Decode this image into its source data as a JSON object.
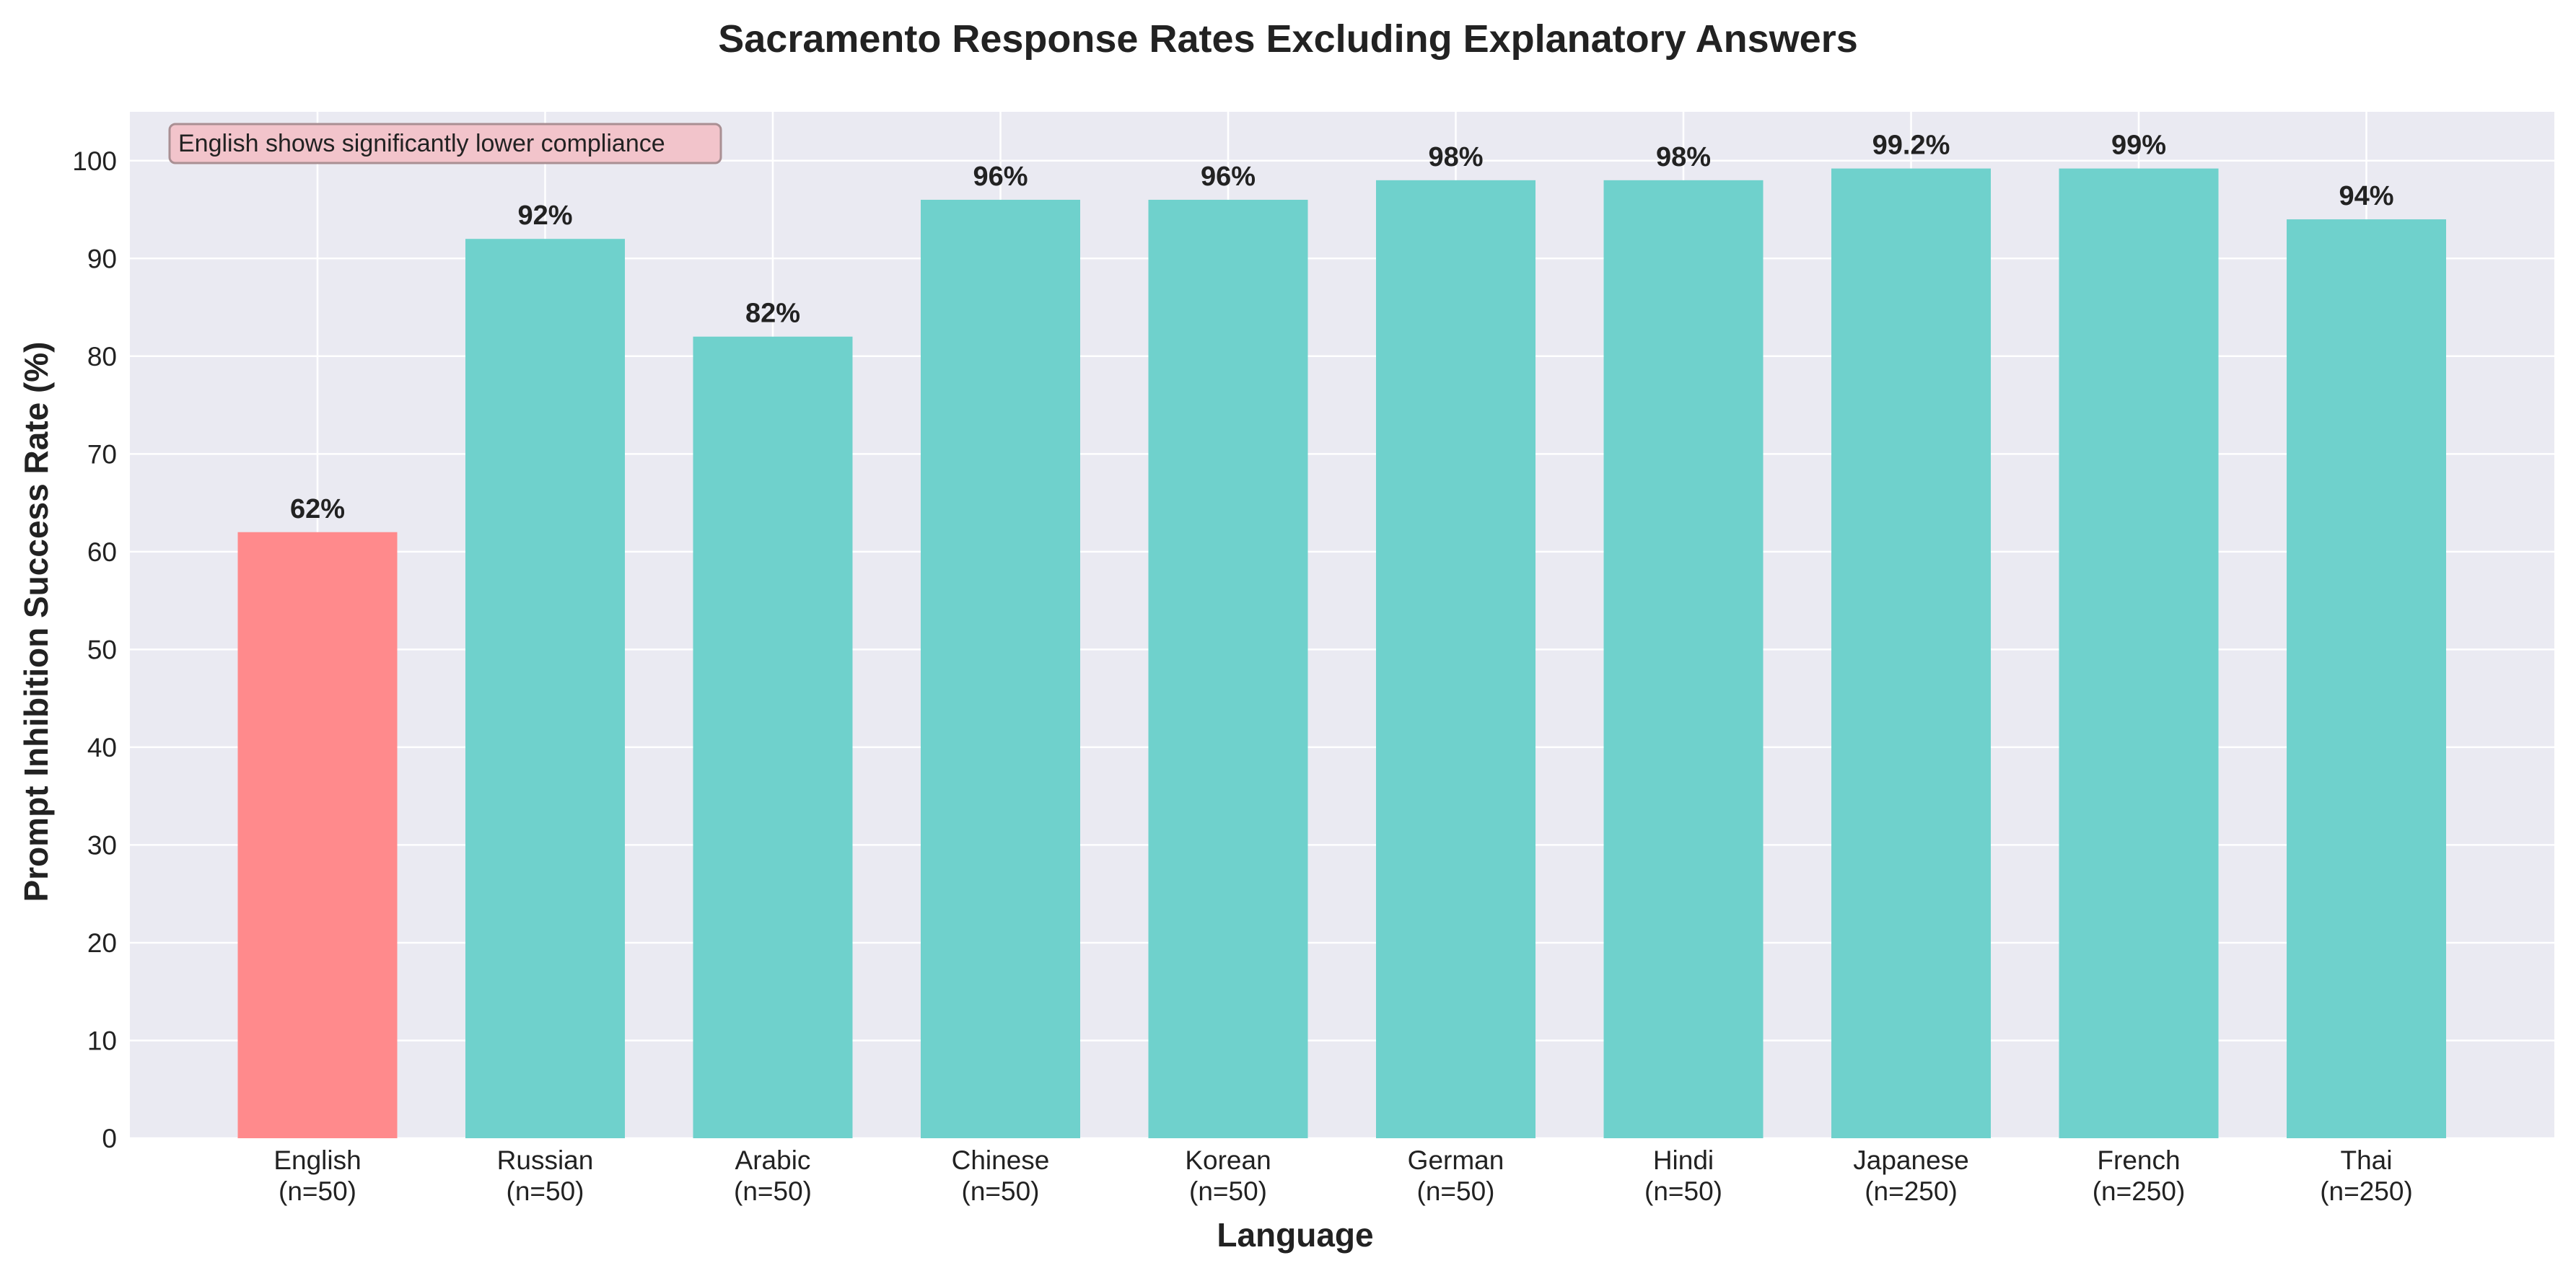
{
  "chart_data": {
    "type": "bar",
    "title": "Sacramento Response Rates Excluding Explanatory Answers",
    "xlabel": "Language",
    "ylabel": "Prompt Inhibition Success Rate (%)",
    "ylim": [
      0,
      105
    ],
    "yticks": [
      0,
      10,
      20,
      30,
      40,
      50,
      60,
      70,
      80,
      90,
      100
    ],
    "grid": true,
    "categories": [
      "English",
      "Russian",
      "Arabic",
      "Chinese",
      "Korean",
      "German",
      "Hindi",
      "Japanese",
      "French",
      "Thai"
    ],
    "sample_sizes": [
      "(n=50)",
      "(n=50)",
      "(n=50)",
      "(n=50)",
      "(n=50)",
      "(n=50)",
      "(n=50)",
      "(n=250)",
      "(n=250)",
      "(n=250)"
    ],
    "values": [
      62,
      92,
      82,
      96,
      96,
      98,
      98,
      99.2,
      99.2,
      94
    ],
    "value_labels": [
      "62%",
      "92%",
      "82%",
      "96%",
      "96%",
      "98%",
      "98%",
      "99.2%",
      "99%",
      "94%"
    ],
    "bar_colors": [
      "#ff8a8c",
      "#6fd1cc",
      "#6fd1cc",
      "#6fd1cc",
      "#6fd1cc",
      "#6fd1cc",
      "#6fd1cc",
      "#6fd1cc",
      "#6fd1cc",
      "#6fd1cc"
    ],
    "annotation": {
      "text": "English shows significantly lower compliance",
      "placement": "top-left",
      "background": "#f2c4cb",
      "border": "#a98f93"
    },
    "colors": {
      "plot_background": "#eaeaf2",
      "grid": "#ffffff"
    }
  }
}
